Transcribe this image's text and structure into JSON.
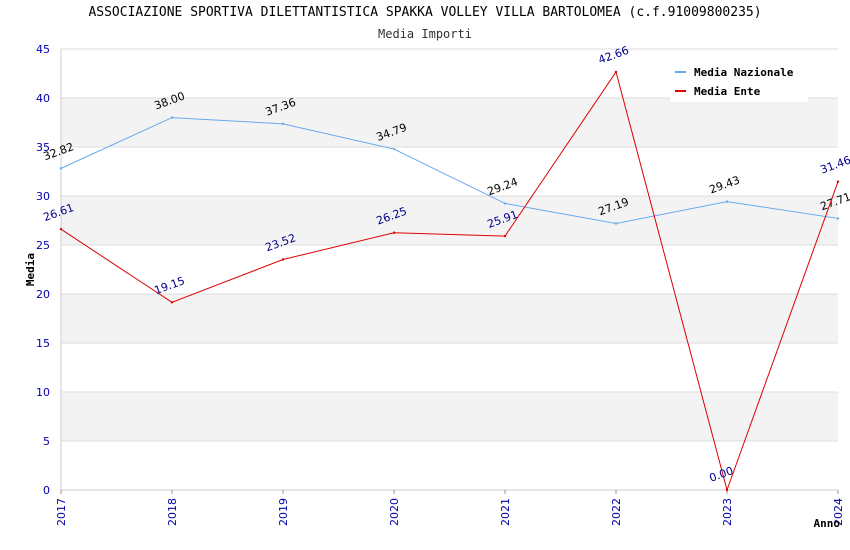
{
  "header": {
    "title": "ASSOCIAZIONE SPORTIVA DILETTANTISTICA SPAKKA VOLLEY VILLA BARTOLOMEA (c.f.91009800235)",
    "subtitle": "Media Importi"
  },
  "chart_data": {
    "type": "line",
    "title": "ASSOCIAZIONE SPORTIVA DILETTANTISTICA SPAKKA VOLLEY VILLA BARTOLOMEA (c.f.91009800235)",
    "subtitle": "Media Importi",
    "xlabel": "Anno",
    "ylabel": "Media",
    "ylim": [
      0,
      45
    ],
    "yticks": [
      "0",
      "5",
      "10",
      "15",
      "20",
      "25",
      "30",
      "35",
      "40",
      "45"
    ],
    "categories": [
      "2017",
      "2018",
      "2019",
      "2020",
      "2021",
      "2022",
      "2023",
      "2024"
    ],
    "grid": "horizontal, alternating bands",
    "legend_position": "top-right",
    "series": [
      {
        "name": "Media Nazionale",
        "color": "#66aaee",
        "values": [
          32.82,
          38.0,
          37.36,
          34.79,
          29.24,
          27.19,
          29.43,
          27.71
        ],
        "labels": [
          "32.82",
          "38.00",
          "37.36",
          "34.79",
          "29.24",
          "27.19",
          "29.43",
          "27.71"
        ]
      },
      {
        "name": "Media Ente",
        "color": "#dd0000",
        "values": [
          26.61,
          19.15,
          23.52,
          26.25,
          25.91,
          42.66,
          0.0,
          31.46
        ],
        "labels": [
          "26.61",
          "19.15",
          "23.52",
          "26.25",
          "25.91",
          "42.66",
          "0.00",
          "31.46"
        ]
      }
    ]
  }
}
